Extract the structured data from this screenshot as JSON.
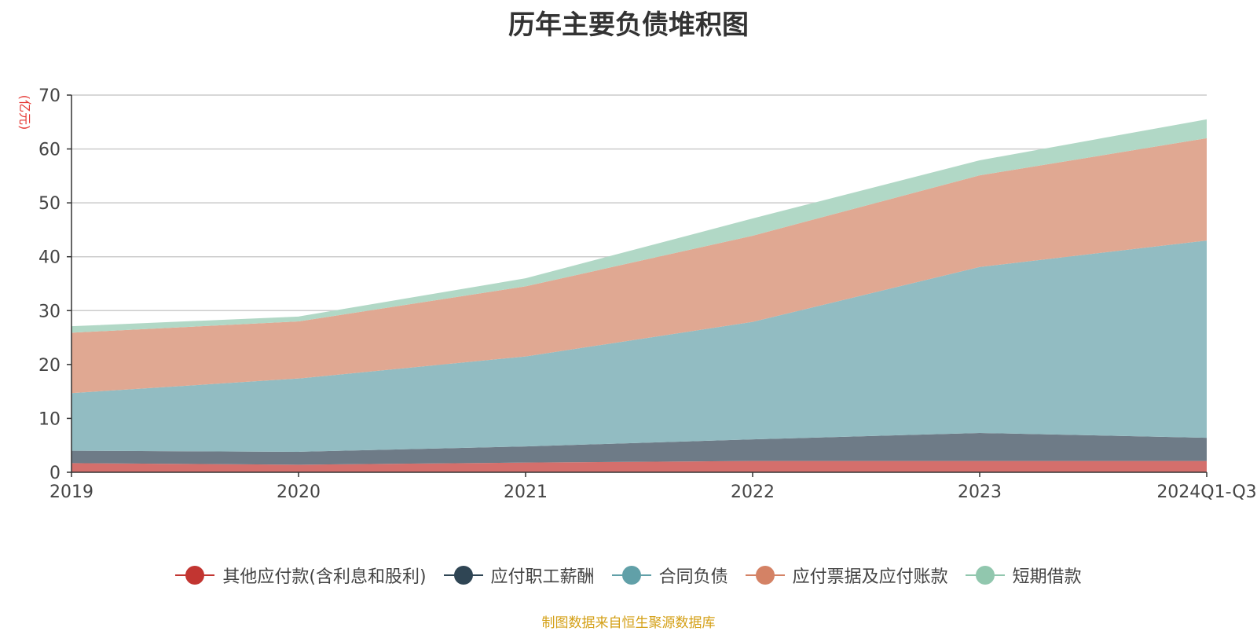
{
  "chart_data": {
    "type": "area",
    "stacked": true,
    "title": "历年主要负债堆积图",
    "ylabel": "(亿元)",
    "xlabel": "",
    "categories": [
      "2019",
      "2020",
      "2021",
      "2022",
      "2023",
      "2024Q1-Q3"
    ],
    "ylim": [
      0,
      70
    ],
    "yticks": [
      0,
      10,
      20,
      30,
      40,
      50,
      60,
      70
    ],
    "grid": true,
    "legend_position": "bottom",
    "series": [
      {
        "name": "其他应付款(含利息和股利)",
        "color": "#c23531",
        "fill": "#d46f6c",
        "values": [
          1.7,
          1.4,
          1.8,
          2.1,
          2.1,
          2.1
        ]
      },
      {
        "name": "应付职工薪酬",
        "color": "#2f4554",
        "fill": "#6e7b87",
        "values": [
          2.3,
          2.4,
          3.0,
          4.0,
          5.2,
          4.3
        ]
      },
      {
        "name": "合同负债",
        "color": "#61a0a8",
        "fill": "#92bcc2",
        "values": [
          10.7,
          13.6,
          16.7,
          21.8,
          30.8,
          36.6
        ]
      },
      {
        "name": "应付票据及应付账款",
        "color": "#d48265",
        "fill": "#e0a892",
        "values": [
          11.2,
          10.6,
          13.0,
          16.0,
          17.0,
          19.0
        ]
      },
      {
        "name": "短期借款",
        "color": "#91c7ae",
        "fill": "#b1d8c6",
        "values": [
          1.2,
          0.9,
          1.5,
          3.2,
          2.8,
          3.5
        ]
      }
    ]
  },
  "source_note": "制图数据来自恒生聚源数据库"
}
